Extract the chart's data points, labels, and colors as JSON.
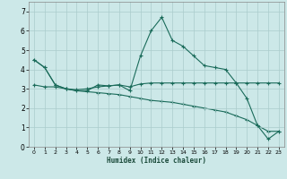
{
  "xlabel": "Humidex (Indice chaleur)",
  "bg_color": "#cce8e8",
  "grid_color": "#aacccc",
  "line_color": "#1a6b5a",
  "xlim": [
    -0.5,
    23.5
  ],
  "ylim": [
    0,
    7.5
  ],
  "xticks": [
    0,
    1,
    2,
    3,
    4,
    5,
    6,
    7,
    8,
    9,
    10,
    11,
    12,
    13,
    14,
    15,
    16,
    17,
    18,
    19,
    20,
    21,
    22,
    23
  ],
  "yticks": [
    0,
    1,
    2,
    3,
    4,
    5,
    6,
    7
  ],
  "line1_x": [
    0,
    1,
    2,
    3,
    4,
    5,
    6,
    7,
    8,
    9,
    10,
    11,
    12,
    13,
    14,
    15,
    16,
    17,
    18,
    19,
    20,
    21,
    22,
    23
  ],
  "line1_y": [
    4.5,
    4.1,
    3.2,
    3.0,
    2.9,
    2.9,
    3.2,
    3.15,
    3.2,
    2.9,
    4.7,
    6.0,
    6.7,
    5.5,
    5.2,
    4.7,
    4.2,
    4.1,
    4.0,
    3.3,
    2.5,
    1.1,
    0.4,
    0.8
  ],
  "line2_x": [
    0,
    1,
    2,
    3,
    4,
    5,
    6,
    7,
    8,
    9,
    10,
    11,
    12,
    13,
    14,
    15,
    16,
    17,
    18,
    19,
    20,
    21,
    22,
    23
  ],
  "line2_y": [
    3.2,
    3.1,
    3.1,
    3.0,
    2.95,
    3.0,
    3.1,
    3.15,
    3.2,
    3.1,
    3.25,
    3.3,
    3.3,
    3.3,
    3.3,
    3.3,
    3.3,
    3.3,
    3.3,
    3.3,
    3.3,
    3.3,
    3.3,
    3.3
  ],
  "line3_x": [
    0,
    1,
    2,
    3,
    4,
    5,
    6,
    7,
    8,
    9,
    10,
    11,
    12,
    13,
    14,
    15,
    16,
    17,
    18,
    19,
    20,
    21,
    22,
    23
  ],
  "line3_y": [
    4.5,
    4.1,
    3.2,
    3.0,
    2.9,
    2.85,
    2.8,
    2.75,
    2.7,
    2.6,
    2.5,
    2.4,
    2.35,
    2.3,
    2.2,
    2.1,
    2.0,
    1.9,
    1.8,
    1.6,
    1.4,
    1.1,
    0.8,
    0.8
  ]
}
